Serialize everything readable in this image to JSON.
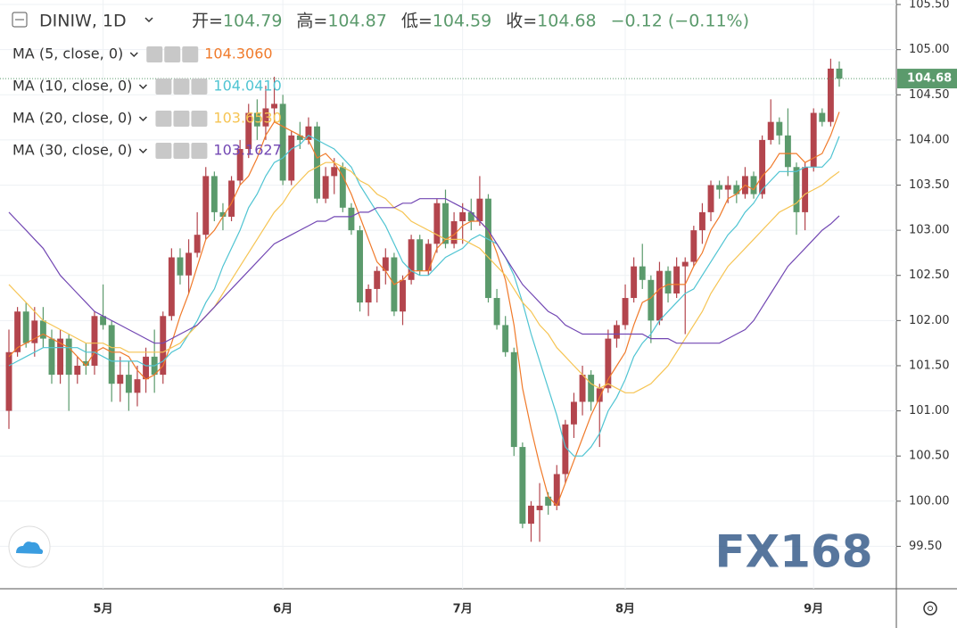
{
  "chart_data": {
    "type": "candlestick",
    "title": "DINIW, 1D",
    "ohlc_labels": [
      "开=",
      "高=",
      "低=",
      "收="
    ],
    "change_label": "−0.12 (−0.11%)",
    "watermark": "FX168",
    "up_color": "#b3454d",
    "down_color": "#5b9a6c",
    "grid": true,
    "ylim": [
      99.03,
      105.55
    ],
    "yticks": [
      {
        "value": 99.5,
        "label": "99.50"
      },
      {
        "value": 100,
        "label": "100.00"
      },
      {
        "value": 100.5,
        "label": "100.50"
      },
      {
        "value": 101,
        "label": "101.00"
      },
      {
        "value": 101.5,
        "label": "101.50"
      },
      {
        "value": 102,
        "label": "102.00"
      },
      {
        "value": 102.5,
        "label": "102.50"
      },
      {
        "value": 103,
        "label": "103.00"
      },
      {
        "value": 103.5,
        "label": "103.50"
      },
      {
        "value": 104,
        "label": "104.00"
      },
      {
        "value": 104.5,
        "label": "104.50"
      },
      {
        "value": 105,
        "label": "105.00"
      },
      {
        "value": 105.5,
        "label": "105.50"
      }
    ],
    "categories": [
      null,
      null,
      null,
      null,
      null,
      null,
      null,
      null,
      null,
      null,
      null,
      "5月",
      null,
      null,
      null,
      null,
      null,
      null,
      null,
      null,
      null,
      null,
      null,
      null,
      null,
      null,
      null,
      null,
      null,
      null,
      null,
      null,
      "6月",
      null,
      null,
      null,
      null,
      null,
      null,
      null,
      null,
      null,
      null,
      null,
      null,
      null,
      null,
      null,
      null,
      null,
      null,
      null,
      null,
      "7月",
      null,
      null,
      null,
      null,
      null,
      null,
      null,
      null,
      null,
      null,
      null,
      null,
      null,
      null,
      null,
      null,
      null,
      null,
      "8月",
      null,
      null,
      null,
      null,
      null,
      null,
      null,
      null,
      null,
      null,
      null,
      null,
      null,
      null,
      null,
      null,
      null,
      null,
      null,
      null,
      null,
      "9月",
      null,
      null,
      null
    ],
    "ohlc": [
      [
        101.0,
        101.9,
        100.8,
        101.65
      ],
      [
        101.65,
        102.15,
        101.6,
        102.1
      ],
      [
        102.1,
        102.2,
        101.7,
        101.75
      ],
      [
        101.75,
        102.15,
        101.6,
        102.0
      ],
      [
        102.0,
        102.15,
        101.7,
        101.8
      ],
      [
        101.8,
        101.9,
        101.3,
        101.4
      ],
      [
        101.4,
        101.9,
        101.3,
        101.8
      ],
      [
        101.8,
        101.85,
        101.0,
        101.4
      ],
      [
        101.4,
        101.6,
        101.3,
        101.5
      ],
      [
        101.55,
        101.75,
        101.4,
        101.5
      ],
      [
        101.5,
        102.1,
        101.4,
        102.05
      ],
      [
        102.05,
        102.4,
        101.9,
        101.95
      ],
      [
        101.95,
        102.0,
        101.1,
        101.3
      ],
      [
        101.3,
        101.6,
        101.1,
        101.4
      ],
      [
        101.4,
        101.55,
        101.0,
        101.2
      ],
      [
        101.2,
        101.5,
        101.05,
        101.35
      ],
      [
        101.35,
        101.7,
        101.2,
        101.6
      ],
      [
        101.6,
        101.9,
        101.2,
        101.4
      ],
      [
        101.4,
        102.1,
        101.3,
        102.05
      ],
      [
        102.05,
        102.8,
        102.0,
        102.7
      ],
      [
        102.7,
        102.8,
        102.4,
        102.5
      ],
      [
        102.5,
        102.9,
        102.3,
        102.75
      ],
      [
        102.75,
        103.2,
        102.7,
        102.95
      ],
      [
        102.95,
        103.7,
        102.9,
        103.6
      ],
      [
        103.6,
        103.65,
        103.1,
        103.2
      ],
      [
        103.2,
        103.3,
        103.0,
        103.15
      ],
      [
        103.15,
        103.6,
        103.1,
        103.55
      ],
      [
        103.55,
        104.0,
        103.5,
        103.9
      ],
      [
        103.9,
        104.4,
        103.8,
        104.3
      ],
      [
        104.3,
        104.45,
        104.0,
        104.15
      ],
      [
        104.15,
        104.6,
        104.0,
        104.35
      ],
      [
        104.35,
        104.7,
        104.2,
        104.4
      ],
      [
        104.4,
        104.5,
        103.5,
        103.55
      ],
      [
        103.55,
        104.1,
        103.5,
        104.05
      ],
      [
        104.05,
        104.2,
        103.9,
        104.0
      ],
      [
        104.0,
        104.25,
        103.95,
        104.15
      ],
      [
        104.15,
        104.2,
        103.3,
        103.35
      ],
      [
        103.35,
        103.7,
        103.3,
        103.6
      ],
      [
        103.6,
        103.8,
        103.4,
        103.7
      ],
      [
        103.7,
        103.75,
        103.2,
        103.25
      ],
      [
        103.25,
        103.3,
        102.95,
        103.0
      ],
      [
        103.0,
        103.05,
        102.1,
        102.2
      ],
      [
        102.2,
        102.4,
        102.05,
        102.35
      ],
      [
        102.35,
        102.6,
        102.2,
        102.55
      ],
      [
        102.55,
        102.8,
        102.4,
        102.7
      ],
      [
        102.7,
        102.75,
        102.05,
        102.1
      ],
      [
        102.1,
        102.5,
        101.95,
        102.45
      ],
      [
        102.45,
        102.95,
        102.4,
        102.9
      ],
      [
        102.9,
        102.95,
        102.5,
        102.55
      ],
      [
        102.55,
        102.9,
        102.5,
        102.85
      ],
      [
        102.85,
        103.35,
        102.75,
        103.3
      ],
      [
        103.3,
        103.45,
        102.8,
        102.85
      ],
      [
        102.85,
        103.2,
        102.8,
        103.1
      ],
      [
        103.1,
        103.3,
        102.85,
        103.2
      ],
      [
        103.2,
        103.35,
        103.0,
        103.1
      ],
      [
        103.1,
        103.6,
        103.05,
        103.35
      ],
      [
        103.35,
        103.4,
        102.2,
        102.25
      ],
      [
        102.25,
        102.35,
        101.9,
        101.95
      ],
      [
        101.95,
        102.05,
        101.6,
        101.65
      ],
      [
        101.65,
        101.7,
        100.5,
        100.6
      ],
      [
        100.6,
        100.65,
        99.7,
        99.75
      ],
      [
        99.75,
        100.0,
        99.55,
        99.95
      ],
      [
        99.9,
        100.2,
        99.55,
        99.95
      ],
      [
        100.05,
        100.1,
        99.85,
        99.95
      ],
      [
        99.95,
        100.4,
        99.9,
        100.3
      ],
      [
        100.3,
        100.9,
        100.2,
        100.85
      ],
      [
        100.85,
        101.2,
        100.7,
        101.1
      ],
      [
        101.1,
        101.5,
        100.95,
        101.4
      ],
      [
        101.4,
        101.45,
        101.0,
        101.1
      ],
      [
        101.1,
        101.3,
        100.6,
        101.25
      ],
      [
        101.25,
        101.9,
        101.2,
        101.8
      ],
      [
        101.8,
        102.0,
        101.7,
        101.95
      ],
      [
        101.95,
        102.4,
        101.9,
        102.25
      ],
      [
        102.25,
        102.7,
        102.2,
        102.6
      ],
      [
        102.6,
        102.85,
        102.35,
        102.45
      ],
      [
        102.45,
        102.5,
        101.75,
        102.0
      ],
      [
        102.0,
        102.65,
        101.95,
        102.55
      ],
      [
        102.55,
        102.6,
        102.2,
        102.3
      ],
      [
        102.3,
        102.7,
        102.25,
        102.6
      ],
      [
        102.6,
        102.7,
        101.85,
        102.65
      ],
      [
        102.65,
        103.05,
        102.6,
        103.0
      ],
      [
        103.0,
        103.3,
        102.85,
        103.2
      ],
      [
        103.2,
        103.55,
        103.1,
        103.5
      ],
      [
        103.5,
        103.55,
        103.35,
        103.45
      ],
      [
        103.45,
        103.6,
        103.3,
        103.5
      ],
      [
        103.5,
        103.55,
        103.3,
        103.4
      ],
      [
        103.4,
        103.7,
        103.35,
        103.6
      ],
      [
        103.6,
        103.65,
        103.35,
        103.4
      ],
      [
        103.4,
        104.05,
        103.35,
        104.0
      ],
      [
        104.0,
        104.45,
        103.95,
        104.2
      ],
      [
        104.2,
        104.25,
        103.95,
        104.05
      ],
      [
        104.05,
        104.35,
        103.6,
        103.7
      ],
      [
        103.7,
        103.75,
        102.95,
        103.2
      ],
      [
        103.2,
        103.75,
        103.0,
        103.7
      ],
      [
        103.7,
        104.35,
        103.65,
        104.3
      ],
      [
        104.3,
        104.35,
        104.15,
        104.2
      ],
      [
        104.2,
        104.9,
        104.15,
        104.79
      ],
      [
        104.79,
        104.87,
        104.59,
        104.68
      ]
    ],
    "series": [
      {
        "name": "MA (5, close, 0)",
        "color": "#f07a2a",
        "value_label": "104.3060",
        "values": [
          101.6,
          101.7,
          101.75,
          101.8,
          101.85,
          101.8,
          101.75,
          101.7,
          101.6,
          101.5,
          101.65,
          101.7,
          101.65,
          101.65,
          101.6,
          101.45,
          101.35,
          101.4,
          101.5,
          101.75,
          102.05,
          102.3,
          102.6,
          102.9,
          103.0,
          103.15,
          103.3,
          103.5,
          103.6,
          103.8,
          104.05,
          104.2,
          104.15,
          104.1,
          104.05,
          104.0,
          103.8,
          103.85,
          103.75,
          103.6,
          103.4,
          103.15,
          102.9,
          102.65,
          102.55,
          102.4,
          102.45,
          102.55,
          102.55,
          102.55,
          102.8,
          102.9,
          102.95,
          103.05,
          103.1,
          103.1,
          103.0,
          102.75,
          102.45,
          101.95,
          101.25,
          100.8,
          100.4,
          100.05,
          99.95,
          100.2,
          100.45,
          100.7,
          100.95,
          101.15,
          101.35,
          101.5,
          101.65,
          101.95,
          102.2,
          102.25,
          102.35,
          102.4,
          102.4,
          102.4,
          102.6,
          102.75,
          103.0,
          103.15,
          103.35,
          103.4,
          103.5,
          103.45,
          103.6,
          103.7,
          103.85,
          103.85,
          103.85,
          103.75,
          103.8,
          103.85,
          104.05,
          104.31
        ]
      },
      {
        "name": "MA (10, close, 0)",
        "color": "#4fc4d2",
        "value_label": "104.0410",
        "values": [
          101.5,
          101.55,
          101.6,
          101.65,
          101.7,
          101.7,
          101.7,
          101.7,
          101.7,
          101.65,
          101.65,
          101.6,
          101.55,
          101.55,
          101.55,
          101.55,
          101.5,
          101.5,
          101.55,
          101.65,
          101.7,
          101.85,
          102.0,
          102.2,
          102.35,
          102.6,
          102.8,
          103.0,
          103.25,
          103.4,
          103.6,
          103.75,
          103.8,
          103.9,
          103.95,
          104.05,
          104.0,
          103.95,
          103.9,
          103.8,
          103.7,
          103.5,
          103.35,
          103.2,
          103.05,
          102.85,
          102.65,
          102.55,
          102.5,
          102.5,
          102.6,
          102.7,
          102.75,
          102.8,
          102.9,
          102.95,
          102.9,
          102.85,
          102.7,
          102.5,
          102.2,
          101.85,
          101.55,
          101.25,
          100.95,
          100.6,
          100.5,
          100.5,
          100.6,
          100.75,
          101.0,
          101.15,
          101.35,
          101.6,
          101.75,
          101.85,
          102.0,
          102.1,
          102.2,
          102.3,
          102.35,
          102.5,
          102.65,
          102.8,
          102.95,
          103.05,
          103.2,
          103.3,
          103.45,
          103.55,
          103.65,
          103.65,
          103.65,
          103.7,
          103.7,
          103.7,
          103.8,
          104.04
        ]
      },
      {
        "name": "MA (20, close, 0)",
        "color": "#f6c453",
        "value_label": "103.6530",
        "values": [
          102.4,
          102.3,
          102.2,
          102.1,
          102.0,
          101.95,
          101.9,
          101.85,
          101.8,
          101.75,
          101.75,
          101.75,
          101.7,
          101.7,
          101.65,
          101.65,
          101.65,
          101.65,
          101.65,
          101.7,
          101.75,
          101.85,
          101.95,
          102.05,
          102.15,
          102.3,
          102.45,
          102.6,
          102.75,
          102.9,
          103.05,
          103.2,
          103.3,
          103.45,
          103.55,
          103.65,
          103.7,
          103.75,
          103.75,
          103.7,
          103.65,
          103.55,
          103.5,
          103.4,
          103.35,
          103.25,
          103.2,
          103.1,
          103.05,
          103.0,
          102.95,
          102.9,
          102.9,
          102.9,
          102.85,
          102.8,
          102.7,
          102.6,
          102.5,
          102.35,
          102.2,
          102.1,
          101.95,
          101.85,
          101.7,
          101.6,
          101.5,
          101.4,
          101.3,
          101.25,
          101.3,
          101.25,
          101.2,
          101.2,
          101.25,
          101.3,
          101.4,
          101.5,
          101.65,
          101.8,
          101.95,
          102.1,
          102.3,
          102.45,
          102.6,
          102.7,
          102.8,
          102.9,
          103.0,
          103.1,
          103.2,
          103.25,
          103.3,
          103.4,
          103.45,
          103.5,
          103.58,
          103.65
        ]
      },
      {
        "name": "MA (30, close, 0)",
        "color": "#7247b3",
        "value_label": "103.1627",
        "values": [
          103.2,
          103.1,
          103.0,
          102.9,
          102.8,
          102.65,
          102.5,
          102.4,
          102.3,
          102.2,
          102.1,
          102.05,
          102.0,
          101.95,
          101.9,
          101.85,
          101.8,
          101.75,
          101.75,
          101.8,
          101.85,
          101.9,
          101.95,
          102.05,
          102.15,
          102.25,
          102.35,
          102.45,
          102.55,
          102.65,
          102.75,
          102.85,
          102.9,
          102.95,
          103.0,
          103.05,
          103.1,
          103.1,
          103.15,
          103.15,
          103.15,
          103.2,
          103.2,
          103.25,
          103.25,
          103.25,
          103.3,
          103.3,
          103.35,
          103.35,
          103.35,
          103.35,
          103.3,
          103.25,
          103.2,
          103.1,
          103.0,
          102.85,
          102.7,
          102.55,
          102.4,
          102.3,
          102.2,
          102.1,
          102.05,
          101.95,
          101.9,
          101.85,
          101.85,
          101.85,
          101.85,
          101.85,
          101.85,
          101.85,
          101.85,
          101.8,
          101.8,
          101.8,
          101.75,
          101.75,
          101.75,
          101.75,
          101.75,
          101.75,
          101.8,
          101.85,
          101.9,
          102.0,
          102.15,
          102.3,
          102.45,
          102.6,
          102.7,
          102.8,
          102.9,
          103.0,
          103.07,
          103.16
        ]
      }
    ]
  }
}
